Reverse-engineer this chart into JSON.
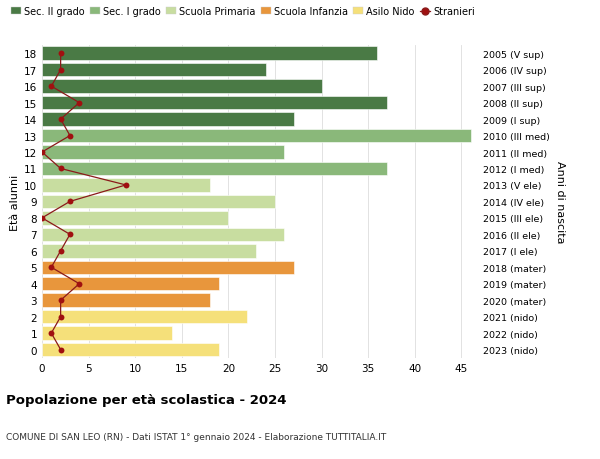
{
  "ages": [
    0,
    1,
    2,
    3,
    4,
    5,
    6,
    7,
    8,
    9,
    10,
    11,
    12,
    13,
    14,
    15,
    16,
    17,
    18
  ],
  "bar_values": [
    19,
    14,
    22,
    18,
    19,
    27,
    23,
    26,
    20,
    25,
    18,
    37,
    26,
    46,
    27,
    37,
    30,
    24,
    36
  ],
  "bar_colors": [
    "#f5e07a",
    "#f5e07a",
    "#f5e07a",
    "#e8963c",
    "#e8963c",
    "#e8963c",
    "#c8dda0",
    "#c8dda0",
    "#c8dda0",
    "#c8dda0",
    "#c8dda0",
    "#8ab87a",
    "#8ab87a",
    "#8ab87a",
    "#4a7a45",
    "#4a7a45",
    "#4a7a45",
    "#4a7a45",
    "#4a7a45"
  ],
  "stranieri_values": [
    2,
    1,
    2,
    2,
    4,
    1,
    2,
    3,
    0,
    3,
    9,
    2,
    0,
    3,
    2,
    4,
    1,
    2,
    2
  ],
  "right_labels": [
    "2023 (nido)",
    "2022 (nido)",
    "2021 (nido)",
    "2020 (mater)",
    "2019 (mater)",
    "2018 (mater)",
    "2017 (I ele)",
    "2016 (II ele)",
    "2015 (III ele)",
    "2014 (IV ele)",
    "2013 (V ele)",
    "2012 (I med)",
    "2011 (II med)",
    "2010 (III med)",
    "2009 (I sup)",
    "2008 (II sup)",
    "2007 (III sup)",
    "2006 (IV sup)",
    "2005 (V sup)"
  ],
  "legend_labels": [
    "Sec. II grado",
    "Sec. I grado",
    "Scuola Primaria",
    "Scuola Infanzia",
    "Asilo Nido",
    "Stranieri"
  ],
  "legend_colors": [
    "#4a7a45",
    "#8ab87a",
    "#c8dda0",
    "#e8963c",
    "#f5e07a",
    "#a01010"
  ],
  "ylabel_left": "Età alunni",
  "ylabel_right": "Anni di nascita",
  "title": "Popolazione per età scolastica - 2024",
  "subtitle": "COMUNE DI SAN LEO (RN) - Dati ISTAT 1° gennaio 2024 - Elaborazione TUTTITALIA.IT",
  "xlim": [
    0,
    47
  ],
  "xticks": [
    0,
    5,
    10,
    15,
    20,
    25,
    30,
    35,
    40,
    45
  ],
  "bg_color": "#ffffff",
  "grid_color": "#dddddd",
  "line_color": "#8b1a1a",
  "dot_color": "#a01010"
}
